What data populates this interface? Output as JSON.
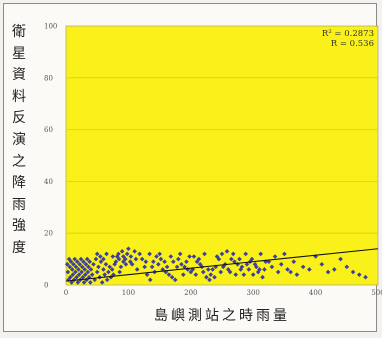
{
  "chart_data": {
    "type": "scatter",
    "xlabel": "島嶼測站之時雨量",
    "ylabel": "衛星資料反演之降雨強度",
    "xlim": [
      0,
      500
    ],
    "ylim": [
      0,
      100
    ],
    "xticks": [
      0,
      100,
      200,
      300,
      400,
      500
    ],
    "yticks": [
      0,
      20,
      40,
      60,
      80,
      100
    ],
    "grid": true,
    "background_color": "#fbf11a",
    "point_color": "#3b3f9e",
    "line_color": "#111111",
    "stats": [
      "R² = 0.2873",
      "R = 0.536"
    ],
    "trendline": {
      "x": [
        0,
        500
      ],
      "y": [
        1.5,
        14
      ]
    },
    "points": [
      [
        2,
        8
      ],
      [
        3,
        5
      ],
      [
        4,
        2
      ],
      [
        5,
        10
      ],
      [
        6,
        7
      ],
      [
        7,
        3
      ],
      [
        8,
        9
      ],
      [
        9,
        1
      ],
      [
        10,
        6
      ],
      [
        11,
        4
      ],
      [
        12,
        8
      ],
      [
        13,
        2
      ],
      [
        14,
        10
      ],
      [
        15,
        5
      ],
      [
        16,
        7
      ],
      [
        17,
        3
      ],
      [
        18,
        9
      ],
      [
        19,
        1
      ],
      [
        20,
        6
      ],
      [
        21,
        4
      ],
      [
        22,
        8
      ],
      [
        23,
        2
      ],
      [
        24,
        10
      ],
      [
        25,
        5
      ],
      [
        26,
        7
      ],
      [
        27,
        3
      ],
      [
        28,
        9
      ],
      [
        29,
        1
      ],
      [
        30,
        6
      ],
      [
        31,
        4
      ],
      [
        32,
        8
      ],
      [
        33,
        2
      ],
      [
        34,
        10
      ],
      [
        35,
        5
      ],
      [
        36,
        7
      ],
      [
        37,
        3
      ],
      [
        38,
        9
      ],
      [
        39,
        1
      ],
      [
        40,
        6
      ],
      [
        42,
        4
      ],
      [
        44,
        8
      ],
      [
        46,
        2
      ],
      [
        48,
        10
      ],
      [
        50,
        5
      ],
      [
        52,
        7
      ],
      [
        54,
        3
      ],
      [
        56,
        9
      ],
      [
        58,
        1
      ],
      [
        60,
        6
      ],
      [
        62,
        4
      ],
      [
        64,
        8
      ],
      [
        66,
        2
      ],
      [
        68,
        5
      ],
      [
        70,
        7
      ],
      [
        72,
        3
      ],
      [
        74,
        6
      ],
      [
        76,
        4
      ],
      [
        78,
        8
      ],
      [
        80,
        9
      ],
      [
        82,
        11
      ],
      [
        84,
        12
      ],
      [
        86,
        5
      ],
      [
        88,
        7
      ],
      [
        90,
        13
      ],
      [
        92,
        11
      ],
      [
        95,
        10
      ],
      [
        98,
        12
      ],
      [
        100,
        14
      ],
      [
        103,
        9
      ],
      [
        106,
        8
      ],
      [
        110,
        13
      ],
      [
        114,
        6
      ],
      [
        118,
        12
      ],
      [
        122,
        10
      ],
      [
        126,
        7
      ],
      [
        130,
        4
      ],
      [
        135,
        2
      ],
      [
        140,
        9
      ],
      [
        145,
        11
      ],
      [
        150,
        12
      ],
      [
        155,
        6
      ],
      [
        160,
        5
      ],
      [
        165,
        4
      ],
      [
        170,
        3
      ],
      [
        175,
        2
      ],
      [
        180,
        10
      ],
      [
        185,
        8
      ],
      [
        190,
        7
      ],
      [
        195,
        6
      ],
      [
        200,
        5
      ],
      [
        205,
        11
      ],
      [
        210,
        9
      ],
      [
        215,
        8
      ],
      [
        220,
        5
      ],
      [
        225,
        3
      ],
      [
        230,
        2
      ],
      [
        235,
        6
      ],
      [
        240,
        7
      ],
      [
        245,
        10
      ],
      [
        250,
        12
      ],
      [
        255,
        8
      ],
      [
        260,
        6
      ],
      [
        265,
        10
      ],
      [
        270,
        9
      ],
      [
        275,
        8
      ],
      [
        280,
        6
      ],
      [
        285,
        4
      ],
      [
        290,
        8
      ],
      [
        295,
        9
      ],
      [
        300,
        4
      ],
      [
        305,
        7
      ],
      [
        310,
        6
      ],
      [
        315,
        3
      ],
      [
        320,
        9
      ],
      [
        330,
        7
      ],
      [
        340,
        5
      ],
      [
        350,
        12
      ],
      [
        360,
        5
      ],
      [
        380,
        7
      ],
      [
        400,
        11
      ],
      [
        420,
        5
      ],
      [
        440,
        10
      ],
      [
        460,
        5
      ],
      [
        480,
        3
      ],
      [
        50,
        12
      ],
      [
        55,
        11
      ],
      [
        60,
        10
      ],
      [
        65,
        12
      ],
      [
        75,
        11
      ],
      [
        85,
        10
      ],
      [
        92,
        9
      ],
      [
        96,
        8
      ],
      [
        104,
        11
      ],
      [
        112,
        10
      ],
      [
        128,
        9
      ],
      [
        134,
        12
      ],
      [
        138,
        7
      ],
      [
        142,
        5
      ],
      [
        148,
        8
      ],
      [
        152,
        10
      ],
      [
        158,
        9
      ],
      [
        162,
        7
      ],
      [
        168,
        11
      ],
      [
        172,
        9
      ],
      [
        178,
        7
      ],
      [
        183,
        12
      ],
      [
        188,
        4
      ],
      [
        193,
        9
      ],
      [
        198,
        11
      ],
      [
        203,
        6
      ],
      [
        208,
        4
      ],
      [
        213,
        10
      ],
      [
        218,
        7
      ],
      [
        222,
        12
      ],
      [
        228,
        6
      ],
      [
        232,
        4
      ],
      [
        238,
        3
      ],
      [
        242,
        11
      ],
      [
        248,
        5
      ],
      [
        252,
        7
      ],
      [
        258,
        13
      ],
      [
        263,
        5
      ],
      [
        268,
        12
      ],
      [
        272,
        4
      ],
      [
        278,
        10
      ],
      [
        282,
        7
      ],
      [
        288,
        12
      ],
      [
        293,
        6
      ],
      [
        298,
        10
      ],
      [
        303,
        8
      ],
      [
        308,
        5
      ],
      [
        312,
        12
      ],
      [
        318,
        6
      ],
      [
        325,
        9
      ],
      [
        335,
        11
      ],
      [
        345,
        8
      ],
      [
        355,
        6
      ],
      [
        365,
        9
      ],
      [
        370,
        4
      ],
      [
        390,
        6
      ],
      [
        410,
        8
      ],
      [
        430,
        6
      ],
      [
        450,
        7
      ],
      [
        470,
        4
      ]
    ]
  }
}
